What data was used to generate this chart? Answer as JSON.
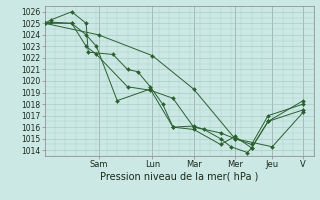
{
  "xlabel": "Pression niveau de la mer( hPa )",
  "bg_color": "#cce8e4",
  "grid_color": "#aaccc8",
  "line_color": "#2a6030",
  "marker_color": "#2a6030",
  "ylim": [
    1013.5,
    1026.5
  ],
  "yticks": [
    1014,
    1015,
    1016,
    1017,
    1018,
    1019,
    1020,
    1021,
    1022,
    1023,
    1024,
    1025,
    1026
  ],
  "xlim": [
    0,
    13.0
  ],
  "day_labels": [
    "Sam",
    "Lun",
    "Mar",
    "Mer",
    "Jeu",
    "V"
  ],
  "day_positions": [
    2.6,
    5.2,
    7.2,
    9.2,
    11.0,
    12.5
  ],
  "series": [
    {
      "x": [
        0.0,
        0.3,
        1.3,
        2.0,
        2.1,
        3.3,
        4.0,
        4.5,
        5.1,
        5.7,
        6.2,
        7.2,
        7.7,
        8.5,
        9.0,
        9.8,
        10.0,
        10.8,
        12.5
      ],
      "y": [
        1025.0,
        1025.3,
        1026.0,
        1025.0,
        1022.5,
        1022.3,
        1021.0,
        1020.8,
        1019.5,
        1018.0,
        1016.0,
        1016.1,
        1015.8,
        1015.0,
        1014.3,
        1013.8,
        1014.2,
        1016.5,
        1017.5
      ]
    },
    {
      "x": [
        0.0,
        0.3,
        1.3,
        2.0,
        2.5,
        4.0,
        5.1,
        6.2,
        7.2,
        8.5,
        9.2,
        10.0,
        10.8,
        12.5
      ],
      "y": [
        1025.0,
        1025.1,
        1025.0,
        1023.0,
        1022.3,
        1019.5,
        1019.2,
        1018.5,
        1016.0,
        1015.5,
        1015.0,
        1014.5,
        1017.0,
        1018.0
      ]
    },
    {
      "x": [
        0.0,
        1.3,
        2.0,
        2.5,
        3.5,
        5.1,
        6.2,
        7.2,
        8.5,
        9.2,
        10.0,
        10.8,
        12.5
      ],
      "y": [
        1025.0,
        1025.0,
        1024.0,
        1023.0,
        1018.3,
        1019.3,
        1016.0,
        1015.8,
        1014.5,
        1015.2,
        1014.2,
        1016.5,
        1018.3
      ]
    },
    {
      "x": [
        0.0,
        2.6,
        5.2,
        7.2,
        9.2,
        11.0,
        12.5
      ],
      "y": [
        1025.0,
        1024.0,
        1022.2,
        1019.3,
        1015.0,
        1014.3,
        1017.3
      ]
    }
  ]
}
